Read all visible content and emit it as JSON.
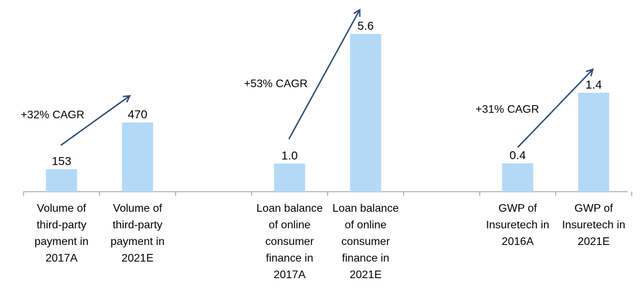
{
  "chart_data": {
    "type": "bar",
    "title": "",
    "xlabel": "",
    "ylabel": "",
    "bar_color": "#b3d9f7",
    "arrow_color": "#2d4b73",
    "groups": [
      {
        "categories": [
          [
            "Volume of",
            "third-party",
            "payment in",
            "2017A"
          ],
          [
            "Volume of",
            "third-party",
            "payment in",
            "2021E"
          ]
        ],
        "values": [
          153,
          470
        ],
        "value_labels": [
          "153",
          "470"
        ],
        "cagr": "+32% CAGR"
      },
      {
        "categories": [
          [
            "Loan balance",
            "of online",
            "consumer",
            "finance in",
            "2017A"
          ],
          [
            "Loan balance",
            "of online",
            "consumer",
            "finance in",
            "2021E"
          ]
        ],
        "values": [
          1.0,
          5.6
        ],
        "value_labels": [
          "1.0",
          "5.6"
        ],
        "cagr": "+53% CAGR"
      },
      {
        "categories": [
          [
            "GWP of",
            "Insuretech in",
            "2016A"
          ],
          [
            "GWP of",
            "Insuretech in",
            "2021E"
          ]
        ],
        "values": [
          0.4,
          1.4
        ],
        "value_labels": [
          "0.4",
          "1.4"
        ],
        "cagr": "+31% CAGR"
      }
    ]
  }
}
